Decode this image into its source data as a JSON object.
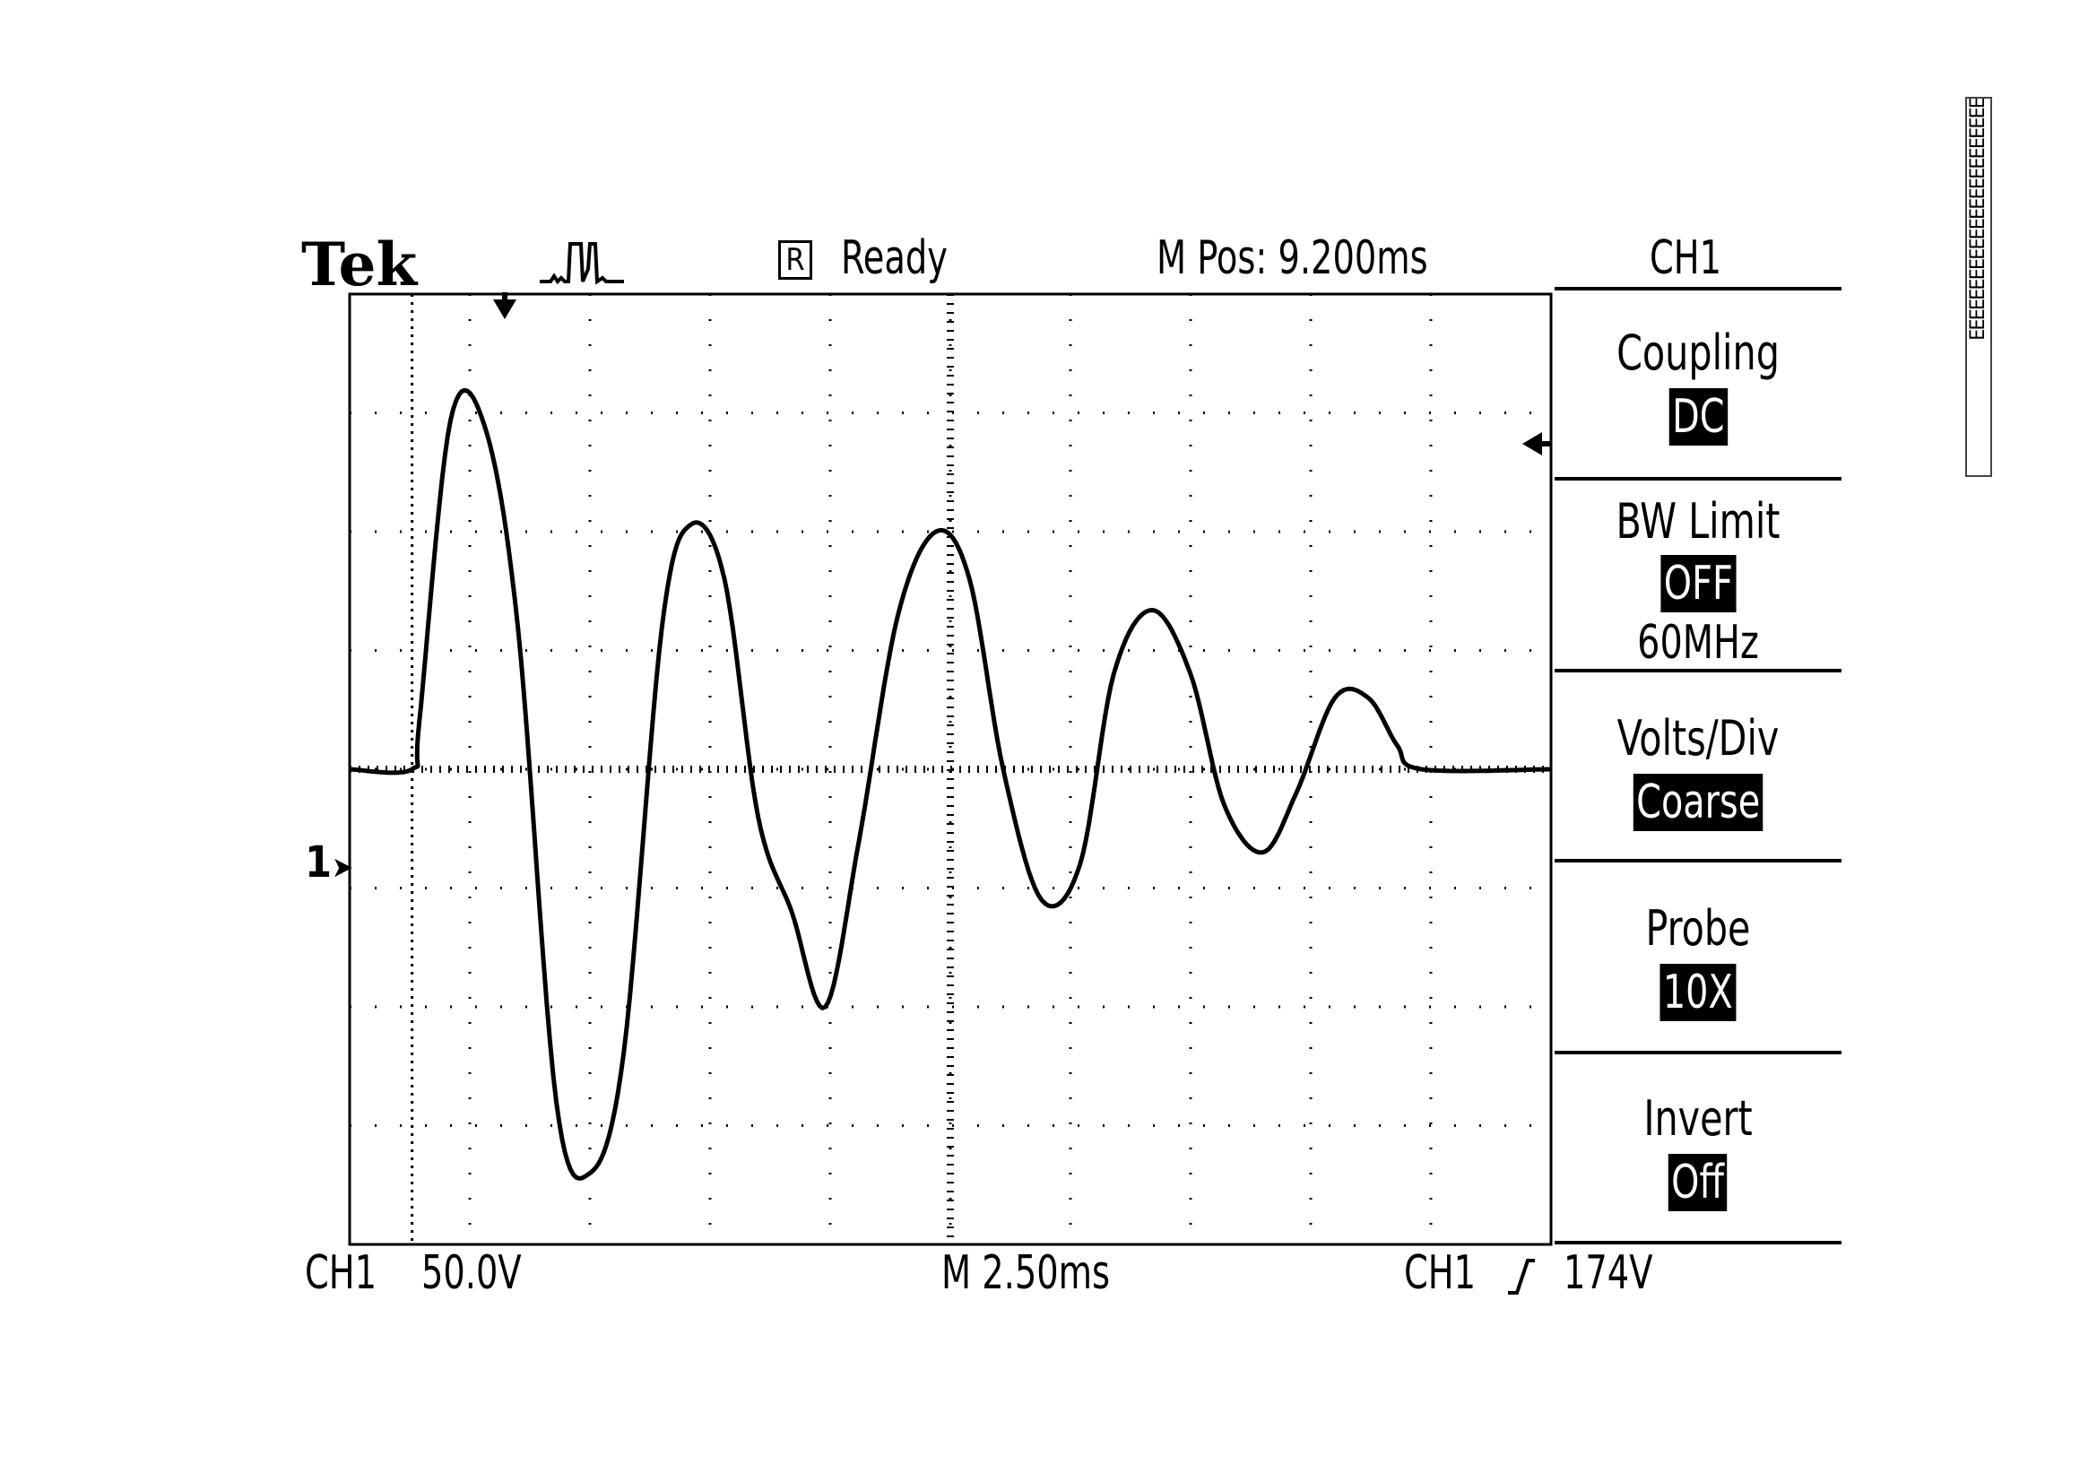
{
  "header": {
    "brand": "Tek",
    "trigger_icon": "pulse-trigger-icon",
    "status_badge": "R",
    "status_text": "Ready",
    "position": "M Pos: 9.200ms",
    "menu_channel": "CH1"
  },
  "side_menu": [
    {
      "title": "Coupling",
      "value": "DC"
    },
    {
      "title": "BW Limit",
      "value": "OFF",
      "sub": "60MHz"
    },
    {
      "title": "Volts/Div",
      "value": "Coarse"
    },
    {
      "title": "Probe",
      "value": "10X"
    },
    {
      "title": "Invert",
      "value": "Off"
    }
  ],
  "footer": {
    "ch1_label": "CH1",
    "ch1_scale": "50.0V",
    "timebase": "M 2.50ms",
    "trigger_label": "CH1",
    "trigger_slope_icon": "rising-edge-icon",
    "trigger_level": "174V"
  },
  "markers": {
    "ground_marker": "1"
  },
  "side_code": "EEEEEEEEEEEEEEEEEEEEEEEE",
  "chart_data": {
    "type": "line",
    "title": "",
    "xlabel": "",
    "ylabel": "",
    "x_unit": "ms",
    "y_unit": "V",
    "x_per_div": 2.5,
    "y_per_div": 50,
    "grid": true,
    "xlim": [
      -1.3,
      23.7
    ],
    "ylim": [
      -200,
      200
    ],
    "series": [
      {
        "x": [
          -1.3,
          0.0,
          0.15,
          0.8,
          1.5,
          2.2,
          3.0,
          3.7,
          4.4,
          5.2,
          5.8,
          6.5,
          7.2,
          7.9,
          8.6,
          9.3,
          10.1,
          10.9,
          11.6,
          12.3,
          13.1,
          13.9,
          14.6,
          15.4,
          16.2,
          16.9,
          17.7,
          18.4,
          19.2,
          19.9,
          20.5,
          21.0,
          23.7
        ],
        "y": [
          0,
          0,
          20,
          147,
          145,
          60,
          -140,
          -170,
          -120,
          60,
          103,
          80,
          -20,
          -60,
          -100,
          -30,
          64,
          100,
          80,
          0,
          -55,
          -40,
          40,
          67,
          40,
          -15,
          -35,
          -10,
          30,
          30,
          10,
          0,
          0
        ]
      }
    ]
  }
}
